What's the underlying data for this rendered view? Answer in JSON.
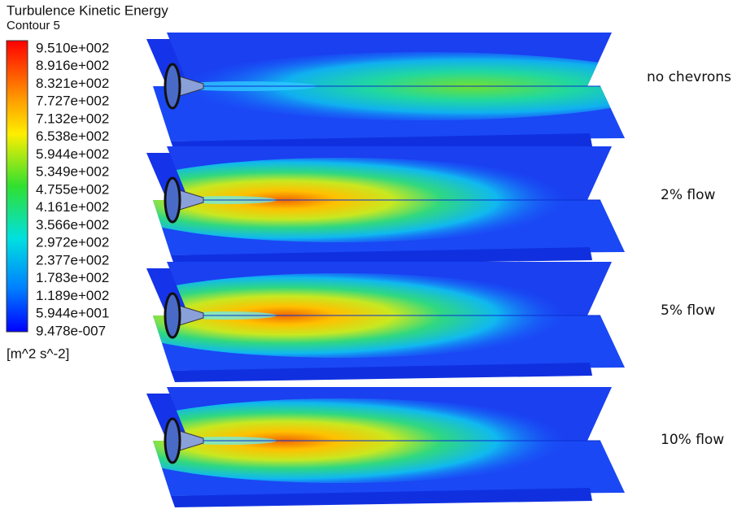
{
  "legend": {
    "title": "Turbulence Kinetic Energy",
    "subtitle": "Contour 5",
    "ticks": [
      "9.510e+002",
      "8.916e+002",
      "8.321e+002",
      "7.727e+002",
      "7.132e+002",
      "6.538e+002",
      "5.944e+002",
      "5.349e+002",
      "4.755e+002",
      "4.161e+002",
      "3.566e+002",
      "2.972e+002",
      "2.377e+002",
      "1.783e+002",
      "1.189e+002",
      "5.944e+001",
      "9.478e-007"
    ],
    "units": "[m^2 s^-2]"
  },
  "panels": [
    {
      "label": "no chevrons"
    },
    {
      "label": "2% flow"
    },
    {
      "label": "5% flow"
    },
    {
      "label": "10% flow"
    }
  ]
}
